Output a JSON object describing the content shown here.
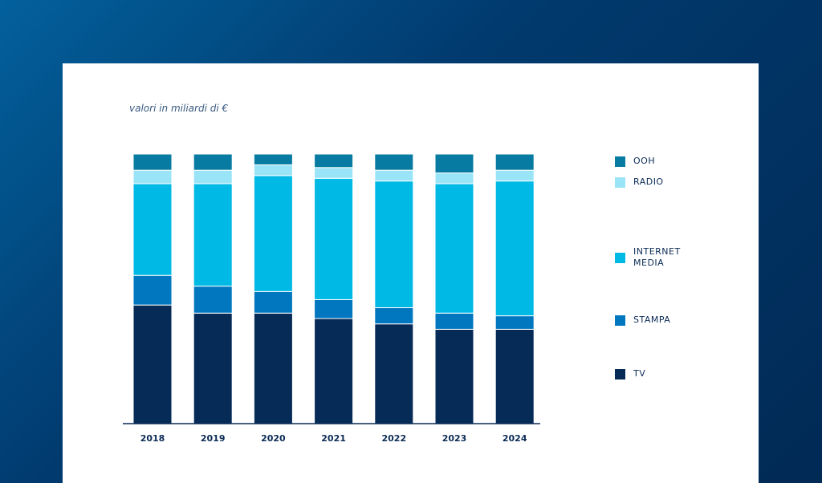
{
  "chart_data": {
    "type": "stacked_bar",
    "subtitle": "valori in miliardi di €",
    "categories": [
      "2018",
      "2019",
      "2020",
      "2021",
      "2022",
      "2023",
      "2024"
    ],
    "ylim": [
      0,
      100
    ],
    "series": [
      {
        "name": "TV",
        "color": "#062b57",
        "values": [
          44,
          41,
          41,
          39,
          37,
          35,
          35
        ]
      },
      {
        "name": "STAMPA",
        "color": "#0077bf",
        "values": [
          11,
          10,
          8,
          7,
          6,
          6,
          5
        ]
      },
      {
        "name": "INTERNET MEDIA",
        "color": "#00b9e5",
        "values": [
          34,
          38,
          43,
          45,
          47,
          48,
          50
        ]
      },
      {
        "name": "RADIO",
        "color": "#9ae4f8",
        "values": [
          5,
          5,
          4,
          4,
          4,
          4,
          4
        ]
      },
      {
        "name": "OOH",
        "color": "#077ba1",
        "values": [
          6,
          6,
          4,
          5,
          6,
          7,
          6
        ]
      }
    ]
  }
}
